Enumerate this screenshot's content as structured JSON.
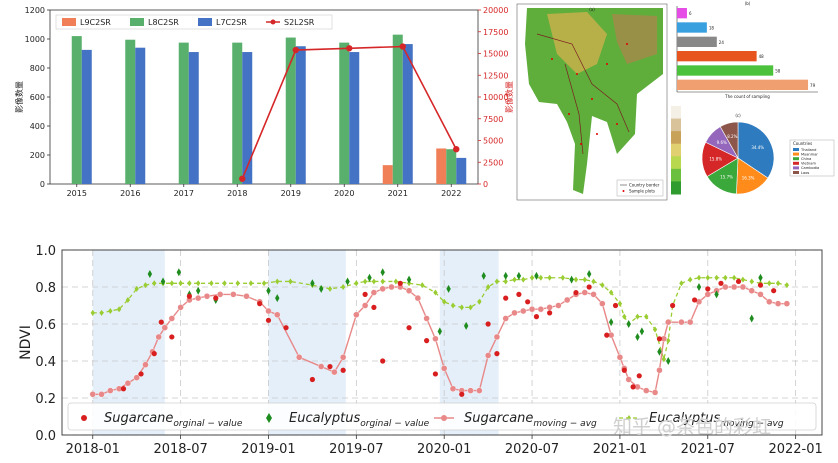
{
  "watermark": "知乎 @茶色的彩虹",
  "chart_data": [
    {
      "type": "bar",
      "id": "top-bar-chart",
      "categories": [
        "2015",
        "2016",
        "2017",
        "2018",
        "2019",
        "2020",
        "2021",
        "2022"
      ],
      "series": [
        {
          "name": "L9C2SR",
          "color": "#f07f57",
          "values": [
            null,
            null,
            null,
            null,
            null,
            null,
            130,
            245
          ]
        },
        {
          "name": "L8C2SR",
          "color": "#58b06c",
          "values": [
            1020,
            995,
            975,
            975,
            1010,
            975,
            1030,
            240
          ]
        },
        {
          "name": "L7C2SR",
          "color": "#4472c4",
          "values": [
            925,
            940,
            910,
            910,
            950,
            910,
            965,
            180
          ]
        },
        {
          "name": "S2L2SR",
          "color": "#d62728",
          "type": "line",
          "axis": "right",
          "x": [
            "2018",
            "2019",
            "2020",
            "2021",
            "2022"
          ],
          "values": [
            600,
            15400,
            15600,
            15800,
            4000
          ]
        }
      ],
      "ylabel": "影像数量",
      "ylim": [
        0,
        1200
      ],
      "yticks": [
        0,
        200,
        400,
        600,
        800,
        1000,
        1200
      ],
      "y2label": "影像数量",
      "y2lim": [
        0,
        20000
      ],
      "y2ticks": [
        0,
        2500,
        5000,
        7500,
        10000,
        12500,
        15000,
        17500,
        20000
      ],
      "legend": "top-left"
    },
    {
      "type": "map",
      "id": "region-map",
      "panel_label": "(a)",
      "legend": [
        "Country border",
        "Sample plots"
      ]
    },
    {
      "type": "bar",
      "id": "horizontal-bar-chart",
      "panel_label": "(b)",
      "orientation": "horizontal",
      "series": [
        {
          "values": [
            6,
            18,
            24,
            48,
            58,
            79
          ]
        }
      ],
      "colors": [
        "#e64ce6",
        "#39a0e0",
        "#888888",
        "#e8541e",
        "#4cc23c",
        "#f0a070"
      ],
      "xlabel": "The count of sampling"
    },
    {
      "type": "pie",
      "id": "pie-chart",
      "panel_label": "(c)",
      "slices": [
        {
          "label": "Thailand",
          "value": 34.4
        },
        {
          "label": "Myanmar",
          "value": 16.3
        },
        {
          "label": "China",
          "value": 15.7
        },
        {
          "label": "Vietnam",
          "value": 15.8
        },
        {
          "label": "Cambodia",
          "value": 9.6
        },
        {
          "label": "Laos",
          "value": 8.2
        }
      ],
      "colors": [
        "#2e7bbf",
        "#ff8c1a",
        "#3aa83a",
        "#d62728",
        "#9467bd",
        "#8c564b"
      ],
      "legend_title": "Countries"
    },
    {
      "type": "scatter",
      "id": "ndvi-time-series",
      "ylabel": "NDVI",
      "ylim": [
        0.0,
        1.0
      ],
      "yticks": [
        "0.0",
        "0.2",
        "0.4",
        "0.6",
        "0.8",
        "1.0"
      ],
      "xticks": [
        "2018-01",
        "2018-07",
        "2019-01",
        "2019-07",
        "2020-01",
        "2020-07",
        "2021-01",
        "2021-07",
        "2022-01"
      ],
      "xlim": [
        -0.35,
        8.3
      ],
      "shaded_spans": [
        [
          0.0,
          0.82
        ],
        [
          2.0,
          2.88
        ],
        [
          3.95,
          4.62
        ]
      ],
      "legend": "bottom",
      "series": [
        {
          "name": "Sugarcane_{orginal-value}",
          "style": "dots",
          "color": "#d81e1e",
          "points": [
            [
              0.35,
              0.25
            ],
            [
              0.55,
              0.33
            ],
            [
              0.7,
              0.44
            ],
            [
              0.78,
              0.61
            ],
            [
              0.9,
              0.53
            ],
            [
              1.1,
              0.75
            ],
            [
              1.4,
              0.74
            ],
            [
              1.9,
              0.71
            ],
            [
              2.0,
              0.62
            ],
            [
              2.2,
              0.58
            ],
            [
              2.5,
              0.3
            ],
            [
              2.7,
              0.37
            ],
            [
              2.85,
              0.35
            ],
            [
              3.1,
              0.76
            ],
            [
              3.2,
              0.69
            ],
            [
              3.3,
              0.4
            ],
            [
              3.5,
              0.82
            ],
            [
              3.6,
              0.58
            ],
            [
              3.8,
              0.51
            ],
            [
              3.9,
              0.33
            ],
            [
              4.2,
              0.22
            ],
            [
              4.5,
              0.6
            ],
            [
              4.6,
              0.44
            ],
            [
              4.7,
              0.74
            ],
            [
              4.85,
              0.76
            ],
            [
              4.95,
              0.72
            ],
            [
              5.05,
              0.64
            ],
            [
              5.2,
              0.66
            ],
            [
              5.5,
              0.77
            ],
            [
              5.65,
              0.8
            ],
            [
              5.85,
              0.54
            ],
            [
              5.95,
              0.7
            ],
            [
              6.05,
              0.35
            ],
            [
              6.15,
              0.26
            ],
            [
              6.22,
              0.32
            ],
            [
              6.45,
              0.52
            ],
            [
              6.6,
              0.7
            ],
            [
              6.85,
              0.73
            ],
            [
              7.0,
              0.79
            ],
            [
              7.15,
              0.82
            ],
            [
              7.35,
              0.83
            ],
            [
              7.6,
              0.81
            ],
            [
              7.75,
              0.78
            ]
          ]
        },
        {
          "name": "Eucalyptus_{orginal-value}",
          "style": "diamonds",
          "color": "#1e8c1e",
          "points": [
            [
              0.65,
              0.87
            ],
            [
              0.8,
              0.83
            ],
            [
              0.98,
              0.88
            ],
            [
              1.1,
              0.76
            ],
            [
              1.2,
              0.78
            ],
            [
              1.4,
              0.73
            ],
            [
              2.0,
              0.78
            ],
            [
              2.1,
              0.74
            ],
            [
              2.5,
              0.82
            ],
            [
              2.6,
              0.79
            ],
            [
              2.9,
              0.83
            ],
            [
              3.15,
              0.85
            ],
            [
              3.3,
              0.88
            ],
            [
              3.6,
              0.84
            ],
            [
              3.95,
              0.56
            ],
            [
              4.05,
              0.79
            ],
            [
              4.25,
              0.59
            ],
            [
              4.45,
              0.86
            ],
            [
              4.7,
              0.86
            ],
            [
              4.85,
              0.86
            ],
            [
              5.05,
              0.86
            ],
            [
              5.45,
              0.84
            ],
            [
              5.65,
              0.87
            ],
            [
              5.9,
              0.61
            ],
            [
              6.1,
              0.6
            ],
            [
              6.2,
              0.53
            ],
            [
              6.25,
              0.56
            ],
            [
              6.45,
              0.45
            ],
            [
              6.55,
              0.4
            ],
            [
              6.9,
              0.8
            ],
            [
              7.1,
              0.76
            ],
            [
              7.5,
              0.63
            ],
            [
              7.6,
              0.85
            ]
          ]
        },
        {
          "name": "Sugarcane_{moving-avg}",
          "style": "line-dots",
          "color": "#e88888",
          "points": [
            [
              0.0,
              0.22
            ],
            [
              0.1,
              0.22
            ],
            [
              0.2,
              0.24
            ],
            [
              0.3,
              0.25
            ],
            [
              0.4,
              0.28
            ],
            [
              0.5,
              0.31
            ],
            [
              0.6,
              0.38
            ],
            [
              0.68,
              0.45
            ],
            [
              0.75,
              0.53
            ],
            [
              0.82,
              0.58
            ],
            [
              0.9,
              0.63
            ],
            [
              1.0,
              0.69
            ],
            [
              1.1,
              0.73
            ],
            [
              1.2,
              0.74
            ],
            [
              1.3,
              0.75
            ],
            [
              1.45,
              0.76
            ],
            [
              1.6,
              0.76
            ],
            [
              1.75,
              0.75
            ],
            [
              1.9,
              0.72
            ],
            [
              2.0,
              0.67
            ],
            [
              2.1,
              0.65
            ],
            [
              2.35,
              0.42
            ],
            [
              2.6,
              0.37
            ],
            [
              2.75,
              0.34
            ],
            [
              2.85,
              0.42
            ],
            [
              3.0,
              0.65
            ],
            [
              3.1,
              0.7
            ],
            [
              3.2,
              0.77
            ],
            [
              3.3,
              0.79
            ],
            [
              3.4,
              0.8
            ],
            [
              3.5,
              0.8
            ],
            [
              3.6,
              0.78
            ],
            [
              3.7,
              0.74
            ],
            [
              3.8,
              0.63
            ],
            [
              3.9,
              0.52
            ],
            [
              4.0,
              0.36
            ],
            [
              4.1,
              0.25
            ],
            [
              4.2,
              0.24
            ],
            [
              4.3,
              0.24
            ],
            [
              4.4,
              0.24
            ],
            [
              4.5,
              0.43
            ],
            [
              4.6,
              0.53
            ],
            [
              4.7,
              0.63
            ],
            [
              4.8,
              0.66
            ],
            [
              4.9,
              0.67
            ],
            [
              5.0,
              0.68
            ],
            [
              5.1,
              0.68
            ],
            [
              5.2,
              0.69
            ],
            [
              5.3,
              0.7
            ],
            [
              5.4,
              0.73
            ],
            [
              5.5,
              0.76
            ],
            [
              5.6,
              0.77
            ],
            [
              5.7,
              0.76
            ],
            [
              5.8,
              0.71
            ],
            [
              5.9,
              0.54
            ],
            [
              6.0,
              0.42
            ],
            [
              6.05,
              0.36
            ],
            [
              6.1,
              0.3
            ],
            [
              6.2,
              0.26
            ],
            [
              6.3,
              0.24
            ],
            [
              6.4,
              0.23
            ],
            [
              6.45,
              0.35
            ],
            [
              6.5,
              0.52
            ],
            [
              6.55,
              0.61
            ],
            [
              6.7,
              0.61
            ],
            [
              6.8,
              0.61
            ],
            [
              6.9,
              0.72
            ],
            [
              7.0,
              0.76
            ],
            [
              7.1,
              0.78
            ],
            [
              7.2,
              0.8
            ],
            [
              7.3,
              0.8
            ],
            [
              7.4,
              0.8
            ],
            [
              7.5,
              0.78
            ],
            [
              7.6,
              0.76
            ],
            [
              7.7,
              0.72
            ],
            [
              7.8,
              0.71
            ],
            [
              7.9,
              0.71
            ]
          ]
        },
        {
          "name": "Eucalyptus_{moving-avg}",
          "style": "dashed-diamonds",
          "color": "#9acd32",
          "points": [
            [
              0.0,
              0.66
            ],
            [
              0.1,
              0.66
            ],
            [
              0.2,
              0.67
            ],
            [
              0.3,
              0.68
            ],
            [
              0.4,
              0.73
            ],
            [
              0.5,
              0.79
            ],
            [
              0.6,
              0.81
            ],
            [
              0.7,
              0.82
            ],
            [
              0.8,
              0.82
            ],
            [
              0.9,
              0.82
            ],
            [
              1.0,
              0.82
            ],
            [
              1.1,
              0.82
            ],
            [
              1.2,
              0.82
            ],
            [
              1.35,
              0.82
            ],
            [
              1.5,
              0.82
            ],
            [
              1.65,
              0.82
            ],
            [
              1.8,
              0.82
            ],
            [
              1.95,
              0.82
            ],
            [
              2.1,
              0.83
            ],
            [
              2.25,
              0.83
            ],
            [
              2.5,
              0.81
            ],
            [
              2.7,
              0.79
            ],
            [
              2.85,
              0.8
            ],
            [
              3.0,
              0.82
            ],
            [
              3.1,
              0.83
            ],
            [
              3.2,
              0.83
            ],
            [
              3.3,
              0.83
            ],
            [
              3.45,
              0.83
            ],
            [
              3.6,
              0.82
            ],
            [
              3.75,
              0.81
            ],
            [
              3.9,
              0.77
            ],
            [
              4.0,
              0.72
            ],
            [
              4.1,
              0.7
            ],
            [
              4.2,
              0.69
            ],
            [
              4.3,
              0.69
            ],
            [
              4.4,
              0.72
            ],
            [
              4.5,
              0.8
            ],
            [
              4.6,
              0.83
            ],
            [
              4.7,
              0.83
            ],
            [
              4.8,
              0.84
            ],
            [
              4.9,
              0.84
            ],
            [
              5.0,
              0.85
            ],
            [
              5.1,
              0.85
            ],
            [
              5.2,
              0.85
            ],
            [
              5.35,
              0.85
            ],
            [
              5.5,
              0.84
            ],
            [
              5.6,
              0.84
            ],
            [
              5.7,
              0.83
            ],
            [
              5.8,
              0.81
            ],
            [
              5.9,
              0.77
            ],
            [
              6.0,
              0.71
            ],
            [
              6.05,
              0.64
            ],
            [
              6.1,
              0.6
            ],
            [
              6.2,
              0.64
            ],
            [
              6.3,
              0.64
            ],
            [
              6.4,
              0.57
            ],
            [
              6.5,
              0.41
            ],
            [
              6.55,
              0.51
            ],
            [
              6.6,
              0.7
            ],
            [
              6.7,
              0.82
            ],
            [
              6.8,
              0.84
            ],
            [
              6.9,
              0.85
            ],
            [
              7.0,
              0.85
            ],
            [
              7.1,
              0.85
            ],
            [
              7.2,
              0.85
            ],
            [
              7.3,
              0.85
            ],
            [
              7.4,
              0.84
            ],
            [
              7.5,
              0.83
            ],
            [
              7.6,
              0.82
            ],
            [
              7.7,
              0.82
            ],
            [
              7.8,
              0.82
            ],
            [
              7.9,
              0.81
            ]
          ]
        }
      ]
    }
  ]
}
